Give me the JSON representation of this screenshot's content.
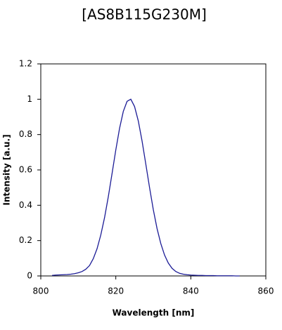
{
  "chart_data": {
    "type": "line",
    "title": "[AS8B115G230M]",
    "x_label": "Wavelength [nm]",
    "y_label": "Intensity [a.u.]",
    "x": [
      803,
      804,
      805,
      806,
      807,
      808,
      809,
      810,
      811,
      812,
      813,
      814,
      815,
      816,
      817,
      818,
      819,
      820,
      821,
      822,
      823,
      824,
      825,
      826,
      827,
      828,
      829,
      830,
      831,
      832,
      833,
      834,
      835,
      836,
      837,
      838,
      839,
      840,
      841,
      842,
      843,
      844,
      845,
      846,
      847,
      848,
      849,
      850,
      851,
      852,
      853
    ],
    "series": [
      {
        "name": "Intensity",
        "color": "#1c1c96",
        "values": [
          0.003,
          0.005,
          0.006,
          0.007,
          0.008,
          0.01,
          0.013,
          0.018,
          0.025,
          0.038,
          0.059,
          0.098,
          0.154,
          0.232,
          0.33,
          0.448,
          0.579,
          0.713,
          0.835,
          0.931,
          0.988,
          1.0,
          0.959,
          0.877,
          0.764,
          0.633,
          0.5,
          0.375,
          0.268,
          0.183,
          0.118,
          0.073,
          0.043,
          0.025,
          0.015,
          0.01,
          0.007,
          0.005,
          0.004,
          0.003,
          0.003,
          0.002,
          0.002,
          0.002,
          0.001,
          0.001,
          0.001,
          0.001,
          0.001,
          0,
          0
        ]
      }
    ],
    "xlim": [
      800,
      860
    ],
    "xticks": [
      800,
      820,
      840,
      860
    ],
    "ylim": [
      0,
      1.2
    ],
    "yticks": [
      0,
      0.2,
      0.4,
      0.6,
      0.8,
      1,
      1.2
    ],
    "grid": false
  }
}
